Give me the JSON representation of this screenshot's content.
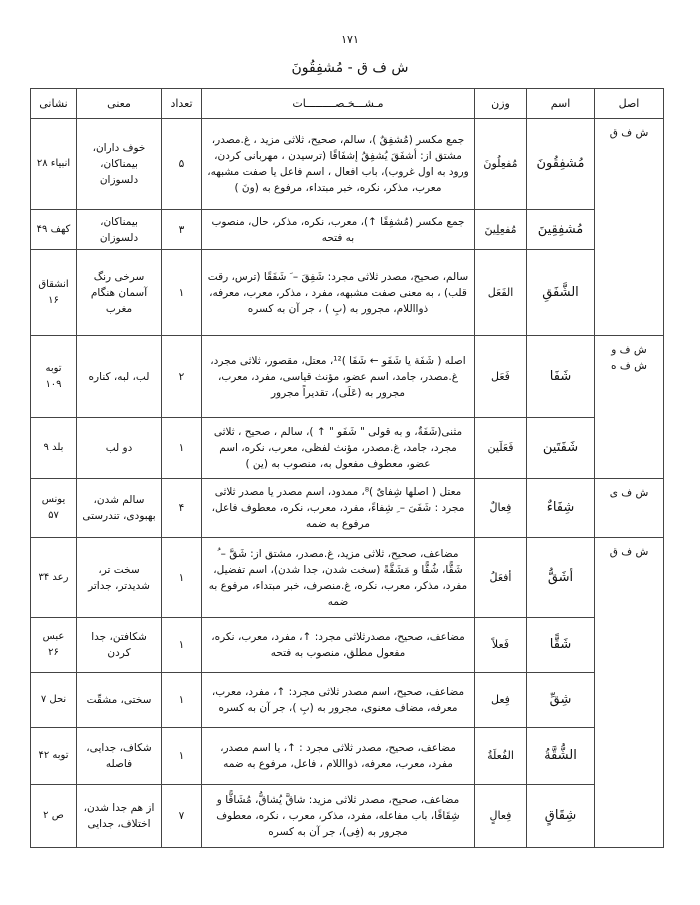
{
  "page_number": "۱۷۱",
  "title": "ش ف ق - مُشفِقُونَ",
  "headers": {
    "asl": "اصل",
    "ism": "اسم",
    "wazn": "وزن",
    "spec": "مـشـــخـصـــــــــات",
    "count": "تعداد",
    "meaning": "معنی",
    "ref": "نشانی"
  },
  "roots": [
    "ش ف ق",
    "ش ف و\nش ف ه",
    "ش ف ی",
    "ش ف ق"
  ],
  "rows": [
    {
      "ism": "مُشفِقُونَ",
      "wazn": "مُفعِلُونَ",
      "spec": "جمع مکسر (مُشفِقٌ )، سالم، صحیح، ثلاثی مزید ، غ.مصدر، مشتق از: أشفَقَ یُشفِقُ إشفَاقًا (ترسیدن ، مهربانی کردن، ورود به اول غروب)، باب افعال ، اسم فاعل یا صفت مشبهه، معرب، مذکر، نکره، خبر مبتداء، مرفوع به (ونَ )",
      "count": "۵",
      "meaning": "خوف داران، بیمناکان، دلسوزان",
      "ref": "انبیاء ۲۸"
    },
    {
      "ism": "مُشفِقِینَ",
      "wazn": "مُفعِلِینَ",
      "spec": "جمع مکسر (مُشفِقًا ↑)، معرب، نکره، مذکر، حال، منصوب به فتحه",
      "count": "۳",
      "meaning": "بیمناکان، دلسوزان",
      "ref": "کهف ۴۹"
    },
    {
      "ism": "الشَّفَقِ",
      "wazn": "الفَعَل",
      "spec": "سالم، صحیح، مصدر ثلاثی مجرد: شَفِقَ – َ شَفَقًا (ترس، رقت قلب) ، به معنی صفت مشبهه، مفرد ، مذکر، معرب، معرفه، ذوااللام، مجرور به (بِ ) ، جر آن به کسره",
      "count": "۱",
      "meaning": "سرخی رنگ آسمان هنگام مغرب",
      "ref": "انشقاق ۱۶"
    },
    {
      "ism": "شَفَا",
      "wazn": "فَعَل",
      "spec": "اصله ( شَفَة یا شَفَو ← شَفَا )¹²، معتل، مقصور، ثلاثی مجرد، غ.مصدر، جامد، اسم عضو، مؤنث قیاسی، مفرد، معرب، مجرور به (عَلَی)، تقدیراً مجرور",
      "count": "۲",
      "meaning": "لب، لبه، کناره",
      "ref": "توبه ۱۰۹"
    },
    {
      "ism": "شَفَتَین",
      "wazn": "فَعَلَین",
      "spec": "مثنی(شَفَةٌ، و به قولی \" شَفَو \" ↑ )، سالم ، صحیح ، ثلاثی مجرد، جامد، غ.مصدر، مؤنث لفظی، معرب، نکره، اسم عضو، معطوف مفعول به، منصوب به (ین )",
      "count": "۱",
      "meaning": "دو لب",
      "ref": "بلد ۹"
    },
    {
      "ism": "شِفَاءٌ",
      "wazn": "فِعالٌ",
      "spec": "معتل ( اصلها شِفایٌ )⁸، ممدود، اسم مصدر یا مصدر ثلاثی مجرد : شَفَیَ – ِ شِفاءً، مفرد، معرب، نکره، معطوف فاعل، مرفوع به ضمه",
      "count": "۴",
      "meaning": "سالم شدن، بهبودی، تندرستی",
      "ref": "یونس ۵۷"
    },
    {
      "ism": "أشَقُّ",
      "wazn": "أفعَلُ",
      "spec": "مضاعف، صحیح، ثلاثی مزید، غ.مصدر، مشتق از: شَقَّ – ُ شَقًّا، شُقًّا و مَشَقَّةً (سخت شدن، جدا شدن)، اسم تفضیل، مفرد، مذکر، معرب، نکره، غ.منصرف، خبر مبتداء، مرفوع به ضمه",
      "count": "۱",
      "meaning": "سخت تر، شدیدتر، جداتر",
      "ref": "رعد ۳۴"
    },
    {
      "ism": "شَقًّا",
      "wazn": "فَعلاً",
      "spec": "مضاعف، صحیح، مصدرثلاثی مجرد: ↑، مفرد، معرب، نکره، مفعول مطلق، منصوب به فتحه",
      "count": "۱",
      "meaning": "شکافتن، جدا کردن",
      "ref": "عبس ۲۶"
    },
    {
      "ism": "شِقِّ",
      "wazn": "فِعل",
      "spec": "مضاعف، صحیح، اسم مصدر ثلاثی مجرد: ↑، مفرد، معرب، معرفه، مضاف معنوی، مجرور به (بِ )، جر آن به کسره",
      "count": "۱",
      "meaning": "سختی، مشقّت",
      "ref": "نحل ۷"
    },
    {
      "ism": "الشُّقَّةُ",
      "wazn": "الفُعلَةُ",
      "spec": "مضاعف، صحیح، مصدر ثلاثی مجرد : ↑، یا اسم مصدر، مفرد، معرب، معرفه، ذوااللام ، فاعل، مرفوع به ضمه",
      "count": "۱",
      "meaning": "شکاف، جدایی، فاصله",
      "ref": "توبه ۴۲"
    },
    {
      "ism": "شِقَاقٍ",
      "wazn": "فِعالٍ",
      "spec": "مضاعف، صحیح، مصدر ثلاثی مزید: شاقَّ یُشاقُّ، مُشَاقًّا و شِقَاقًا، باب مفاعله، مفرد، مذکر، معرب ، نکره، معطوف مجرور به (فِی)، جر آن به کسره",
      "count": "۷",
      "meaning": "از هم جدا شدن، اختلاف، جدایی",
      "ref": "ص ۲"
    }
  ]
}
